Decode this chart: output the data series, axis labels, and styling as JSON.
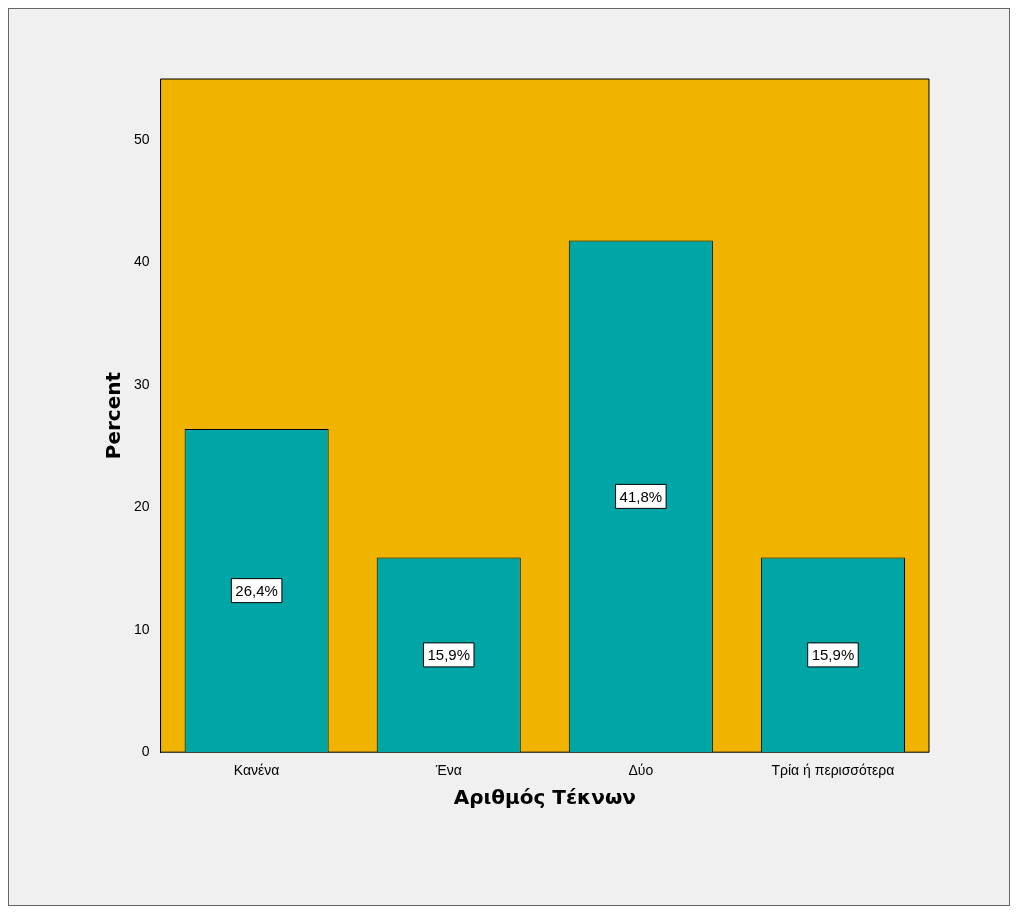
{
  "chart_data": {
    "type": "bar",
    "xlabel": "Αριθμός Τέκνων",
    "ylabel": "Percent",
    "categories": [
      "Κανένα",
      "Ένα",
      "Δύο",
      "Τρία ή περισσότερα"
    ],
    "series": [
      {
        "color": "#00a5a5",
        "values": [
          26.4,
          15.9,
          41.8,
          15.9
        ],
        "value_labels": [
          "26,4%",
          "15,9%",
          "41,8%",
          "15,9%"
        ]
      }
    ],
    "ylim": [
      0,
      55
    ],
    "yticks": [
      0,
      10,
      20,
      30,
      40,
      50
    ],
    "grid": false,
    "legend": false
  }
}
